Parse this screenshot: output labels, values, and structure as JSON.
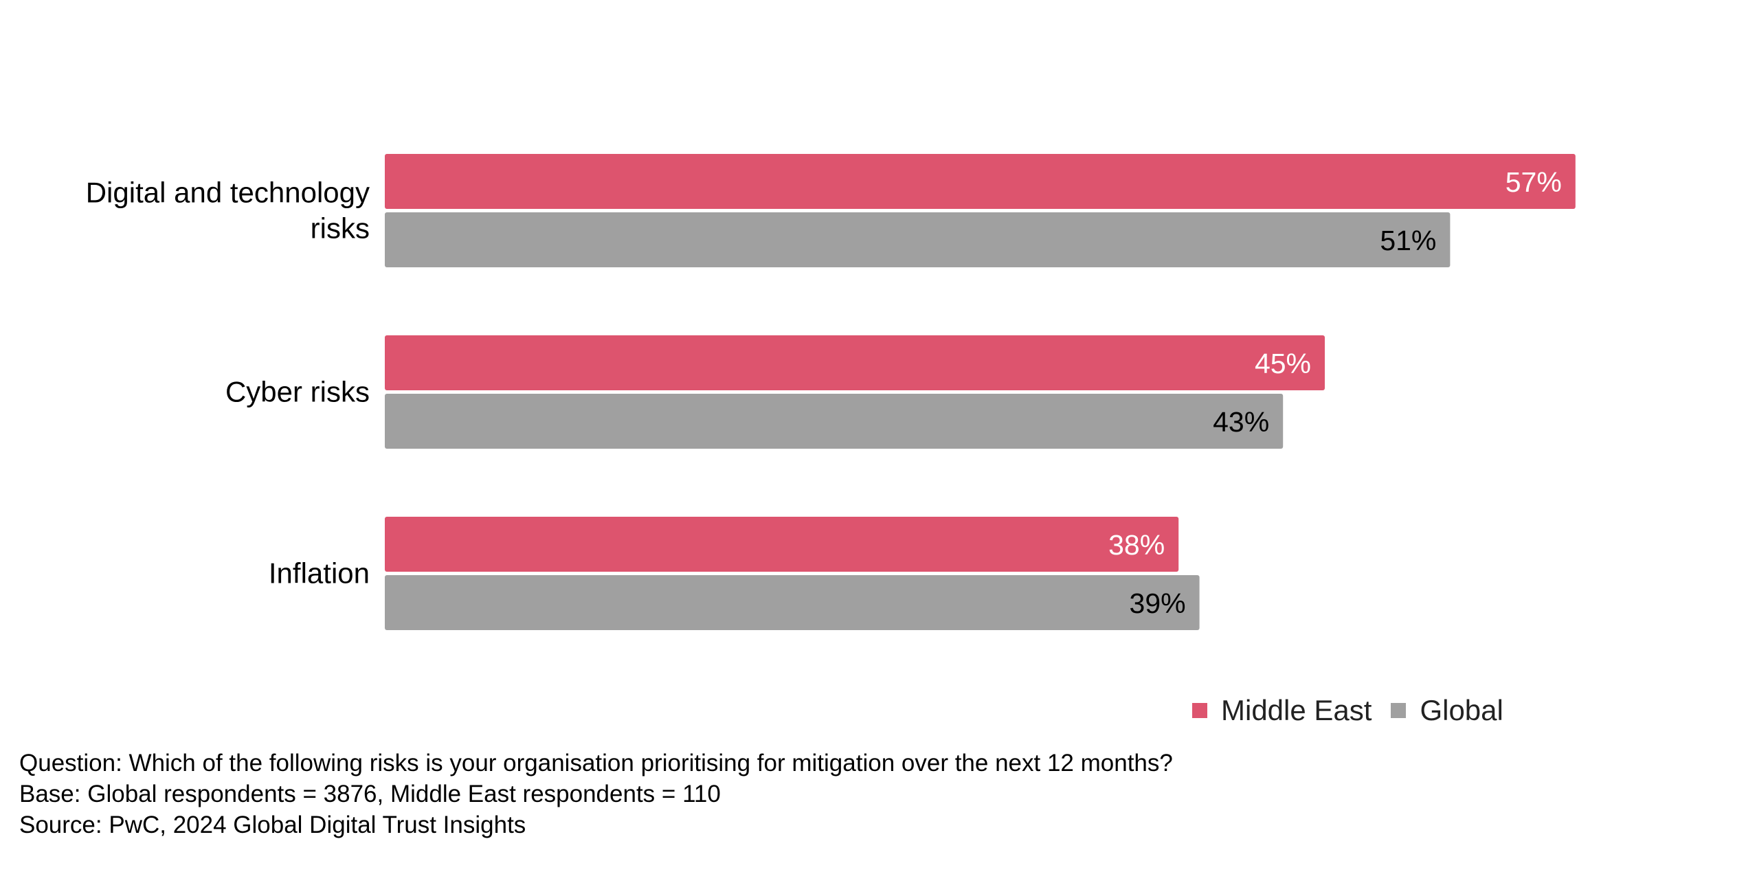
{
  "chart_data": {
    "type": "bar",
    "orientation": "horizontal",
    "categories": [
      "Digital and technology risks",
      "Cyber risks",
      "Inflation"
    ],
    "category_lines": [
      [
        "Digital and technology",
        "risks"
      ],
      [
        "Cyber risks"
      ],
      [
        "Inflation"
      ]
    ],
    "series": [
      {
        "name": "Middle East",
        "values": [
          57,
          45,
          38
        ],
        "color": "#DD546E",
        "label_color": "#FFFFFF"
      },
      {
        "name": "Global",
        "values": [
          51,
          43,
          39
        ],
        "color": "#A0A0A0",
        "label_color": "#000000"
      }
    ],
    "value_suffix": "%",
    "xlim": [
      0,
      100
    ],
    "grid": false,
    "legend_position": "bottom-right"
  },
  "legend": {
    "items": [
      {
        "label": "Middle East",
        "color": "#DD546E"
      },
      {
        "label": "Global",
        "color": "#A0A0A0"
      }
    ]
  },
  "notes": {
    "question": "Question: Which of the following risks is your organisation prioritising for mitigation over the next 12 months?",
    "base": "Base: Global respondents = 3876, Middle East respondents = 110",
    "source": "Source: PwC, 2024 Global Digital Trust Insights"
  }
}
